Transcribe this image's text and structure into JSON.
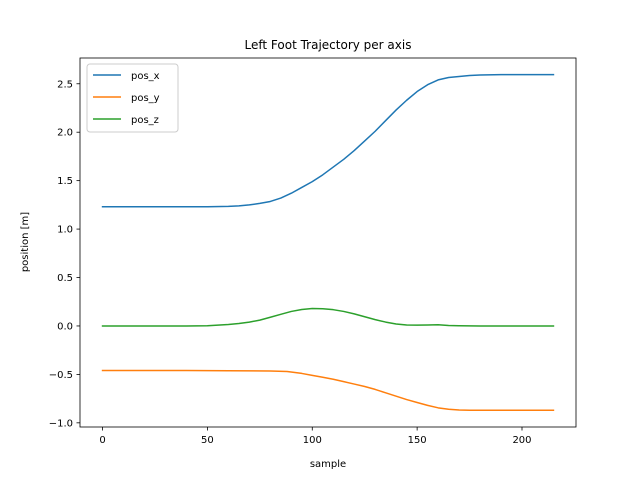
{
  "chart_data": {
    "type": "line",
    "title": "Left Foot Trajectory per axis",
    "xlabel": "sample",
    "ylabel": "position [m]",
    "xlim": [
      -10.75,
      225.75
    ],
    "ylim": [
      -1.043,
      2.766
    ],
    "xticks": [
      0,
      50,
      100,
      150,
      200
    ],
    "yticks": [
      -1.0,
      -0.5,
      0.0,
      0.5,
      1.0,
      1.5,
      2.0,
      2.5
    ],
    "ytick_labels": [
      "−1.0",
      "−0.5",
      "0.0",
      "0.5",
      "1.0",
      "1.5",
      "2.0",
      "2.5"
    ],
    "grid": false,
    "legend_position": "upper-left",
    "series": [
      {
        "name": "pos_x",
        "color": "#1f77b4",
        "x": [
          0,
          20,
          40,
          50,
          60,
          65,
          70,
          75,
          80,
          85,
          90,
          95,
          100,
          105,
          110,
          115,
          120,
          125,
          130,
          135,
          140,
          145,
          150,
          155,
          160,
          165,
          170,
          175,
          180,
          190,
          200,
          215
        ],
        "y": [
          1.23,
          1.23,
          1.23,
          1.23,
          1.235,
          1.24,
          1.25,
          1.265,
          1.285,
          1.32,
          1.37,
          1.43,
          1.49,
          1.56,
          1.64,
          1.72,
          1.81,
          1.91,
          2.01,
          2.12,
          2.23,
          2.33,
          2.42,
          2.49,
          2.54,
          2.565,
          2.575,
          2.585,
          2.59,
          2.595,
          2.595,
          2.595
        ]
      },
      {
        "name": "pos_y",
        "color": "#ff7f0e",
        "x": [
          0,
          20,
          40,
          60,
          80,
          88,
          95,
          100,
          105,
          110,
          115,
          120,
          125,
          130,
          135,
          140,
          145,
          150,
          155,
          160,
          165,
          170,
          175,
          180,
          190,
          200,
          215
        ],
        "y": [
          -0.46,
          -0.46,
          -0.46,
          -0.462,
          -0.465,
          -0.47,
          -0.49,
          -0.51,
          -0.53,
          -0.55,
          -0.575,
          -0.6,
          -0.625,
          -0.655,
          -0.69,
          -0.725,
          -0.76,
          -0.79,
          -0.82,
          -0.845,
          -0.86,
          -0.868,
          -0.87,
          -0.87,
          -0.87,
          -0.87,
          -0.87
        ]
      },
      {
        "name": "pos_z",
        "color": "#2ca02c",
        "x": [
          0,
          20,
          40,
          50,
          55,
          60,
          65,
          70,
          75,
          80,
          85,
          90,
          95,
          100,
          105,
          110,
          115,
          120,
          125,
          130,
          135,
          140,
          145,
          150,
          155,
          160,
          165,
          170,
          180,
          190,
          200,
          215
        ],
        "y": [
          0.0,
          0.0,
          0.0,
          0.002,
          0.008,
          0.015,
          0.025,
          0.04,
          0.06,
          0.09,
          0.12,
          0.15,
          0.17,
          0.18,
          0.178,
          0.168,
          0.15,
          0.125,
          0.095,
          0.065,
          0.04,
          0.02,
          0.01,
          0.008,
          0.01,
          0.012,
          0.005,
          0.002,
          0.0,
          0.0,
          0.0,
          0.0
        ]
      }
    ]
  }
}
